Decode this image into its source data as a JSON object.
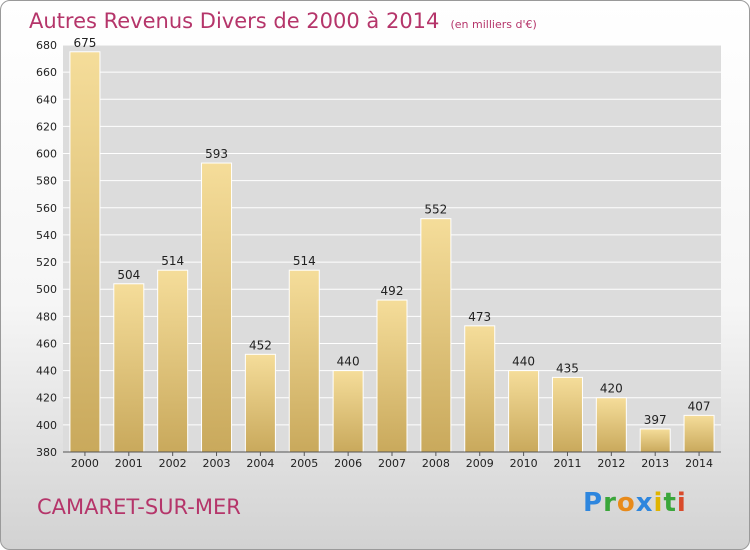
{
  "header": {
    "title": "Autres Revenus Divers de 2000 à 2014",
    "subtitle": "(en milliers d'€)"
  },
  "footer": {
    "city": "CAMARET-SUR-MER",
    "logo_letters": [
      {
        "ch": "P",
        "color": "#2e86de"
      },
      {
        "ch": "r",
        "color": "#3aa63a"
      },
      {
        "ch": "o",
        "color": "#e88a1a"
      },
      {
        "ch": "x",
        "color": "#2e86de"
      },
      {
        "ch": "i",
        "color": "#e0b400"
      },
      {
        "ch": "t",
        "color": "#3aa63a"
      },
      {
        "ch": "i",
        "color": "#d94a2a"
      }
    ]
  },
  "chart_data": {
    "type": "bar",
    "categories": [
      "2000",
      "2001",
      "2002",
      "2003",
      "2004",
      "2005",
      "2006",
      "2007",
      "2008",
      "2009",
      "2010",
      "2011",
      "2012",
      "2013",
      "2014"
    ],
    "values": [
      675,
      504,
      514,
      593,
      452,
      514,
      440,
      492,
      552,
      473,
      440,
      435,
      420,
      397,
      407
    ],
    "ylim": [
      380,
      680
    ],
    "yticks": [
      380,
      400,
      420,
      440,
      460,
      480,
      500,
      520,
      540,
      560,
      580,
      600,
      620,
      640,
      660,
      680
    ],
    "grid": true,
    "colors": {
      "bar_light": "#f5dd9a",
      "bar_dark": "#c9a95c",
      "grid": "#ffffff",
      "plot_bg": "#dcdcdc"
    }
  }
}
